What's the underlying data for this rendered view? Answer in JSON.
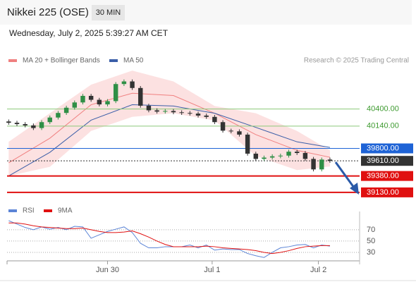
{
  "header": {
    "title": "Nikkei 225 (OSE)",
    "interval": "30 MIN",
    "timestamp": "Wednesday, July 2, 2025 5:39:27 AM CET"
  },
  "chart_data": [
    {
      "type": "candlestick",
      "source": "Research © 2025 Trading Central",
      "up_color": "#2f8f46",
      "down_color": "#333333",
      "open": [
        40210,
        40190,
        40170,
        40150,
        40110,
        40200,
        40270,
        40340,
        40420,
        40500,
        40600,
        40540,
        40470,
        40520,
        40780,
        40820,
        40720,
        40450,
        40380,
        40360,
        40370,
        40350,
        40340,
        40330,
        40300,
        40280,
        40200,
        40070,
        40060,
        40010,
        39720,
        39640,
        39660,
        39680,
        39690,
        39750,
        39730,
        39640,
        39480,
        39630
      ],
      "high": [
        40240,
        40220,
        40200,
        40180,
        40230,
        40300,
        40370,
        40450,
        40530,
        40630,
        40630,
        40570,
        40550,
        40810,
        40850,
        40850,
        40750,
        40480,
        40410,
        40400,
        40400,
        40380,
        40370,
        40360,
        40330,
        40310,
        40230,
        40100,
        40090,
        40040,
        39750,
        39690,
        39710,
        39720,
        39780,
        39780,
        39760,
        39670,
        39660,
        39660
      ],
      "low": [
        40160,
        40140,
        40120,
        40080,
        40080,
        40170,
        40240,
        40310,
        40390,
        40470,
        40510,
        40440,
        40440,
        40490,
        40750,
        40690,
        40420,
        40350,
        40330,
        40330,
        40320,
        40310,
        40300,
        40270,
        40250,
        40170,
        40040,
        40030,
        39980,
        39690,
        39610,
        39610,
        39630,
        39650,
        39660,
        39700,
        39610,
        39450,
        39450,
        39580
      ],
      "close": [
        40190,
        40170,
        40150,
        40110,
        40200,
        40270,
        40340,
        40420,
        40500,
        40600,
        40540,
        40470,
        40520,
        40780,
        40820,
        40720,
        40450,
        40380,
        40360,
        40370,
        40350,
        40340,
        40330,
        40300,
        40280,
        40200,
        40070,
        40060,
        40010,
        39720,
        39640,
        39660,
        39680,
        39690,
        39750,
        39730,
        39640,
        39480,
        39630,
        39610
      ],
      "xlim": [
        -0.2,
        42.6
      ],
      "ylim": [
        39000,
        41040
      ],
      "xticks": [
        {
          "value": 12,
          "label": "Jun 30"
        },
        {
          "value": 24.7,
          "label": "Jul 1"
        },
        {
          "value": 37.6,
          "label": "Jul 2"
        }
      ],
      "overlays": [
        {
          "name": "MA 20 + Bollinger Bands",
          "color": "#f08080",
          "band_color": "#fbdada",
          "x": [
            0,
            5,
            10,
            15,
            20,
            25,
            30,
            35,
            39
          ],
          "values": [
            39580,
            39955,
            40465,
            40640,
            40605,
            40335,
            40010,
            39770,
            39665
          ],
          "upper": [
            39900,
            40335,
            40770,
            40985,
            40820,
            40445,
            40335,
            40065,
            39770
          ],
          "lower": [
            39380,
            39520,
            40065,
            40280,
            40335,
            40225,
            39685,
            39470,
            39525
          ]
        },
        {
          "name": "MA 50",
          "color": "#3b5ea8",
          "x": [
            0,
            5,
            10,
            15,
            20,
            25,
            30,
            35,
            39
          ],
          "values": [
            39380,
            39740,
            40230,
            40465,
            40445,
            40335,
            40120,
            39900,
            39815
          ]
        }
      ],
      "levels": [
        {
          "value": 40400,
          "label": "40400.00",
          "color": "#8cc97a",
          "text_color": "#3d9a2f",
          "boxed": false
        },
        {
          "value": 40140,
          "label": "40140.00",
          "color": "#8cc97a",
          "text_color": "#3d9a2f",
          "boxed": false
        },
        {
          "value": 39800,
          "label": "39800.00",
          "color": "#1e63d6",
          "text_color": "#ffffff",
          "boxed": true
        },
        {
          "value": 39610,
          "label": "39610.00",
          "color": "#333333",
          "text_color": "#ffffff",
          "boxed": true,
          "dotted": true
        },
        {
          "value": 39380,
          "label": "39380.00",
          "color": "#e01010",
          "text_color": "#ffffff",
          "boxed": true
        },
        {
          "value": 39130,
          "label": "39130.00",
          "color": "#e01010",
          "text_color": "#ffffff",
          "boxed": true
        }
      ]
    },
    {
      "type": "line",
      "ylim": [
        15,
        96
      ],
      "yticks": [
        70,
        50,
        30
      ],
      "xlim": [
        -0.2,
        42.6
      ],
      "x": [
        0,
        1,
        2,
        3,
        4,
        5,
        6,
        7,
        8,
        9,
        10,
        11,
        12,
        13,
        14,
        15,
        16,
        17,
        18,
        19,
        20,
        21,
        22,
        23,
        24,
        25,
        26,
        27,
        28,
        29,
        30,
        31,
        32,
        33,
        34,
        35,
        36,
        37,
        38,
        39
      ],
      "series": [
        {
          "name": "RSI",
          "color": "#5b84d6",
          "values": [
            86,
            80,
            74,
            70,
            75,
            71,
            74,
            70,
            76,
            75,
            55,
            61,
            67,
            71,
            75,
            65,
            46,
            38,
            38,
            40,
            40,
            40,
            43,
            38,
            43,
            34,
            36,
            35,
            35,
            28,
            24,
            21,
            30,
            38,
            40,
            43,
            44,
            38,
            43,
            41
          ]
        },
        {
          "name": "9MA",
          "color": "#e01010",
          "values": [
            82,
            82,
            80,
            77,
            75,
            74,
            73,
            72,
            72,
            73,
            70,
            67,
            65,
            65,
            66,
            68,
            63,
            57,
            50,
            44,
            40,
            40,
            40,
            40,
            41,
            40,
            38,
            37,
            36,
            35,
            33,
            30,
            28,
            30,
            33,
            37,
            40,
            41,
            42,
            42
          ]
        }
      ]
    }
  ]
}
